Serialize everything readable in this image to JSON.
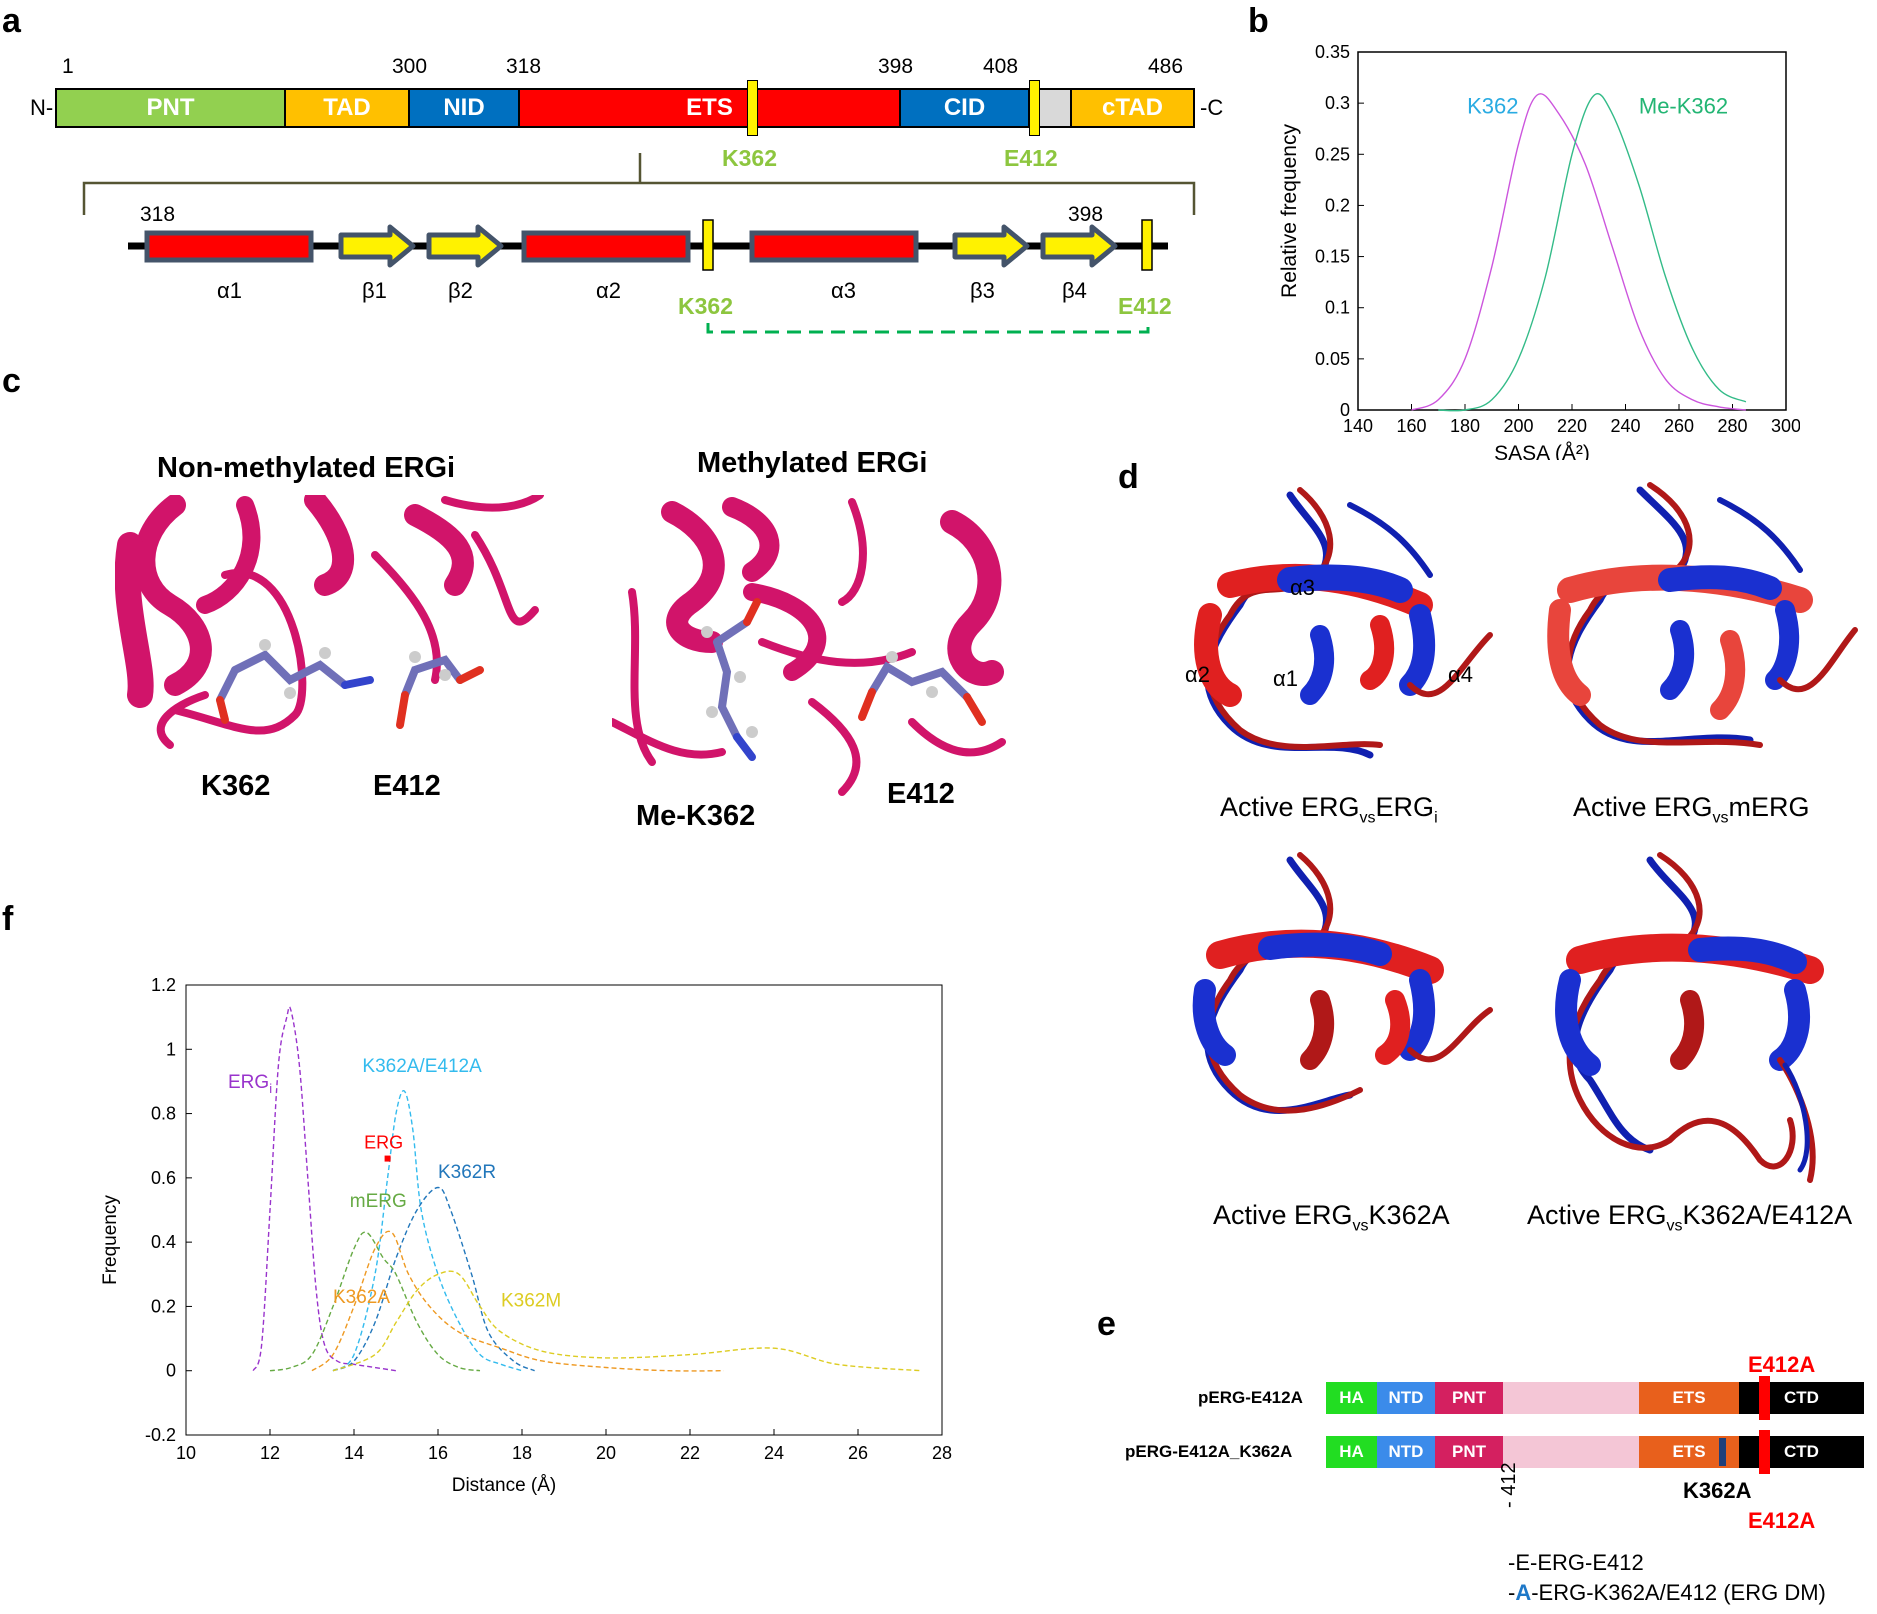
{
  "panels": {
    "a": "a",
    "b": "b",
    "c": "c",
    "d": "d",
    "e": "e",
    "f": "f"
  },
  "panel_a": {
    "n_term": "N-",
    "c_term": "-C",
    "positions": {
      "p1": "1",
      "p300": "300",
      "p318": "318",
      "p398": "398",
      "p408": "408",
      "p486": "486"
    },
    "domains": {
      "pnt": "PNT",
      "tad": "TAD",
      "nid": "NID",
      "ets": "ETS",
      "cid": "CID",
      "ctad": "cTAD"
    },
    "sites": {
      "k362": "K362",
      "e412": "E412"
    },
    "ets_detail": {
      "start": "318",
      "end": "398",
      "elements": {
        "a1": "α1",
        "b1": "β1",
        "b2": "β2",
        "a2": "α2",
        "a3": "α3",
        "b3": "β3",
        "b4": "β4"
      },
      "k362": "K362",
      "e412": "E412"
    },
    "colors": {
      "pnt": "#92d050",
      "tad": "#ffc000",
      "nid": "#0070c0",
      "ets": "#ff0000",
      "cid": "#0070c0",
      "ctad": "#ffc000",
      "site": "#fff200",
      "site_label": "#8dc63f"
    }
  },
  "panel_b": {
    "chart_data": {
      "type": "line",
      "title": "",
      "xlabel": "SASA (Å²)",
      "ylabel": "Relative frequency",
      "xlim": [
        140,
        300
      ],
      "ylim": [
        0,
        0.35
      ],
      "xticks": [
        "140",
        "160",
        "180",
        "200",
        "220",
        "240",
        "260",
        "280",
        "300"
      ],
      "yticks": [
        "0",
        "0.05",
        "0.1",
        "0.15",
        "0.2",
        "0.25",
        "0.3",
        "0.35"
      ],
      "series": [
        {
          "name": "K362",
          "color": "#cc55dd",
          "label_color": "#29abe2",
          "x": [
            160,
            170,
            180,
            190,
            200,
            207,
            215,
            225,
            235,
            245,
            255,
            265,
            275,
            285
          ],
          "y": [
            0.0,
            0.01,
            0.05,
            0.14,
            0.26,
            0.308,
            0.29,
            0.24,
            0.16,
            0.08,
            0.03,
            0.01,
            0.003,
            0.0
          ]
        },
        {
          "name": "Me-K362",
          "color": "#33bb88",
          "label_color": "#22b573",
          "x": [
            170,
            180,
            190,
            200,
            210,
            220,
            228,
            235,
            245,
            255,
            265,
            275,
            285
          ],
          "y": [
            0.0,
            0.0,
            0.01,
            0.05,
            0.13,
            0.25,
            0.307,
            0.29,
            0.22,
            0.13,
            0.06,
            0.02,
            0.008
          ]
        }
      ]
    }
  },
  "panel_c": {
    "left_title": "Non-methylated ERGi",
    "right_title": "Methylated ERGi",
    "left_labels": {
      "k362": "K362",
      "e412": "E412"
    },
    "right_labels": {
      "mek362": "Me-K362",
      "e412": "E412"
    }
  },
  "panel_d": {
    "captions": [
      {
        "prefix": "Active ERG",
        "sub": "vs",
        "suffix": "ERG",
        "suffix_sub": "i"
      },
      {
        "prefix": "Active ERG",
        "sub": "vs",
        "suffix": "mERG",
        "suffix_sub": ""
      },
      {
        "prefix": "Active ERG",
        "sub": "vs",
        "suffix": "K362A",
        "suffix_sub": ""
      },
      {
        "prefix": "Active ERG",
        "sub": "vs",
        "suffix": "K362A/E412A",
        "suffix_sub": ""
      }
    ],
    "helix_labels": {
      "a1": "α1",
      "a2": "α2",
      "a3": "α3",
      "a4": "α4"
    }
  },
  "panel_e": {
    "construct1": "pERG-E412A",
    "construct2": "pERG-E412A_K362A",
    "domains": {
      "ha": "HA",
      "ntd": "NTD",
      "pnt": "PNT",
      "ets": "ETS",
      "ctd": "CTD"
    },
    "e412a_top": "E412A",
    "k362a": "K362A",
    "e412a_bottom": "E412A",
    "position": "- 412",
    "legend1_prefix": "-",
    "legend1_res": "E",
    "legend1_text": "-ERG-E412",
    "legend2_prefix": "-",
    "legend2_res": "A",
    "legend2_text": "-ERG-K362A/E412 (ERG DM)"
  },
  "panel_f": {
    "chart_data": {
      "type": "line",
      "title": "",
      "xlabel": "Distance  (Å)",
      "ylabel": "Frequency",
      "xlim": [
        10,
        28
      ],
      "ylim": [
        -0.2,
        1.2
      ],
      "xticks": [
        "10",
        "12",
        "14",
        "16",
        "18",
        "20",
        "22",
        "24",
        "26",
        "28"
      ],
      "yticks": [
        "-0.2",
        "0",
        "0.2",
        "0.4",
        "0.6",
        "0.8",
        "1",
        "1.2"
      ],
      "series": [
        {
          "name": "ERG",
          "label_text": "ERG",
          "sub": "i",
          "color": "#9933cc",
          "x": [
            11.6,
            11.8,
            12.0,
            12.2,
            12.4,
            12.5,
            12.7,
            12.9,
            13.1,
            13.3,
            13.6,
            14.0,
            14.5,
            15.0
          ],
          "y": [
            0.0,
            0.08,
            0.5,
            0.95,
            1.1,
            1.12,
            0.95,
            0.6,
            0.25,
            0.08,
            0.03,
            0.02,
            0.01,
            0.0
          ]
        },
        {
          "name": "K362A/E412A",
          "label_text": "K362A/E412A",
          "sub": "",
          "color": "#33bbee",
          "x": [
            13.5,
            14.0,
            14.5,
            14.8,
            15.0,
            15.2,
            15.4,
            15.6,
            16.0,
            16.5,
            17.0,
            17.5,
            18.0
          ],
          "y": [
            0.0,
            0.05,
            0.3,
            0.6,
            0.8,
            0.87,
            0.75,
            0.5,
            0.3,
            0.15,
            0.05,
            0.02,
            0.0
          ]
        },
        {
          "name": "K362R",
          "label_text": "K362R",
          "sub": "",
          "color": "#2277bb",
          "x": [
            13.5,
            14.0,
            14.5,
            15.0,
            15.5,
            16.0,
            16.3,
            16.8,
            17.2,
            17.8,
            18.3
          ],
          "y": [
            0.0,
            0.03,
            0.15,
            0.35,
            0.5,
            0.57,
            0.5,
            0.3,
            0.12,
            0.03,
            0.0
          ]
        },
        {
          "name": "mERG",
          "label_text": "mERG",
          "sub": "",
          "color": "#66aa44",
          "x": [
            12.0,
            12.5,
            13.0,
            13.5,
            14.0,
            14.3,
            14.7,
            15.0,
            15.5,
            16.0,
            16.5,
            17.0
          ],
          "y": [
            0.0,
            0.01,
            0.05,
            0.2,
            0.38,
            0.43,
            0.35,
            0.3,
            0.15,
            0.05,
            0.01,
            0.0
          ]
        },
        {
          "name": "K362A",
          "label_text": "K362A",
          "sub": "",
          "color": "#ee9922",
          "x": [
            13.0,
            13.5,
            14.0,
            14.5,
            14.9,
            15.3,
            15.8,
            16.5,
            17.5,
            18.5,
            20.0,
            21.5,
            22.8
          ],
          "y": [
            0.0,
            0.05,
            0.2,
            0.38,
            0.43,
            0.3,
            0.2,
            0.12,
            0.07,
            0.03,
            0.01,
            0.0,
            0.0
          ]
        },
        {
          "name": "K362M",
          "label_text": "K362M",
          "sub": "",
          "color": "#ddcc22",
          "x": [
            13.5,
            14.5,
            15.0,
            15.5,
            16.0,
            16.5,
            17.0,
            17.5,
            18.5,
            20.0,
            22.0,
            24.0,
            25.5,
            27.5
          ],
          "y": [
            0.0,
            0.05,
            0.15,
            0.25,
            0.3,
            0.3,
            0.2,
            0.12,
            0.06,
            0.04,
            0.05,
            0.07,
            0.02,
            0.0
          ]
        }
      ],
      "annotations": [
        {
          "text": "ERG",
          "x": 14.8,
          "y": 0.66,
          "color": "#ff0000"
        }
      ]
    }
  }
}
